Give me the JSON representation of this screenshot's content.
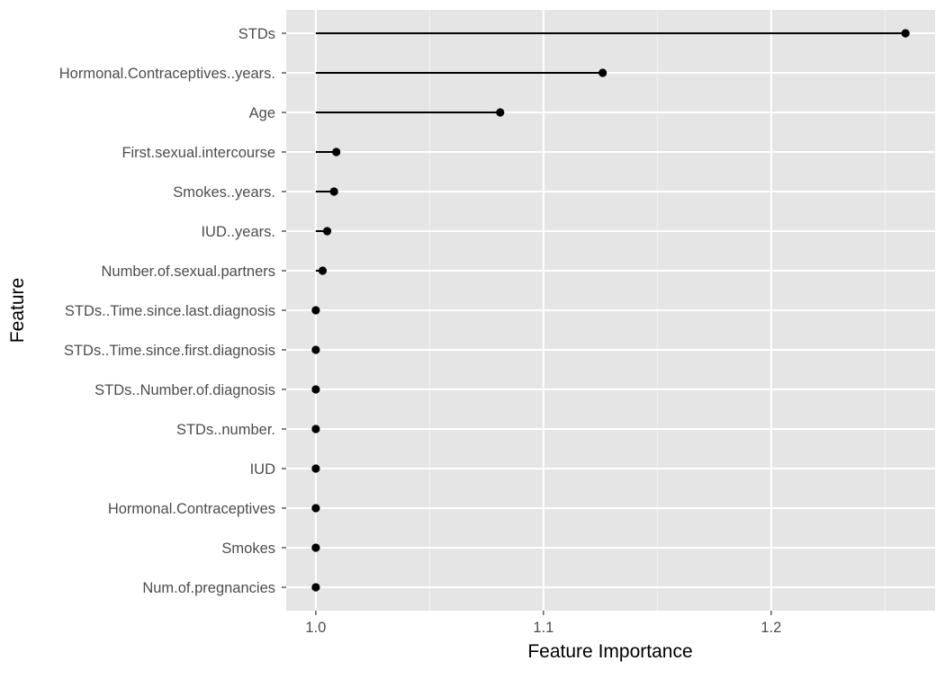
{
  "chart_data": {
    "type": "lollipop",
    "xlabel": "Feature Importance",
    "ylabel": "Feature",
    "xlim": [
      0.987,
      1.272
    ],
    "xticks": [
      {
        "value": 1.0,
        "label": "1.0"
      },
      {
        "value": 1.1,
        "label": "1.1"
      },
      {
        "value": 1.2,
        "label": "1.2"
      }
    ],
    "baseline": 1.0,
    "grid": true,
    "legend": "none",
    "categories": [
      "STDs",
      "Hormonal.Contraceptives..years.",
      "Age",
      "First.sexual.intercourse",
      "Smokes..years.",
      "IUD..years.",
      "Number.of.sexual.partners",
      "STDs..Time.since.last.diagnosis",
      "STDs..Time.since.first.diagnosis",
      "STDs..Number.of.diagnosis",
      "STDs..number.",
      "IUD",
      "Hormonal.Contraceptives",
      "Smokes",
      "Num.of.pregnancies"
    ],
    "values": [
      1.259,
      1.126,
      1.081,
      1.009,
      1.008,
      1.005,
      1.003,
      1.0,
      1.0,
      1.0,
      1.0,
      1.0,
      1.0,
      1.0,
      1.0
    ]
  },
  "colors": {
    "panel_background": "#e5e5e5",
    "grid_major": "#ffffff",
    "grid_minor": "#f2f2f2",
    "segment": "#000000",
    "point": "#000000",
    "tick_text": "#4d4d4d"
  }
}
